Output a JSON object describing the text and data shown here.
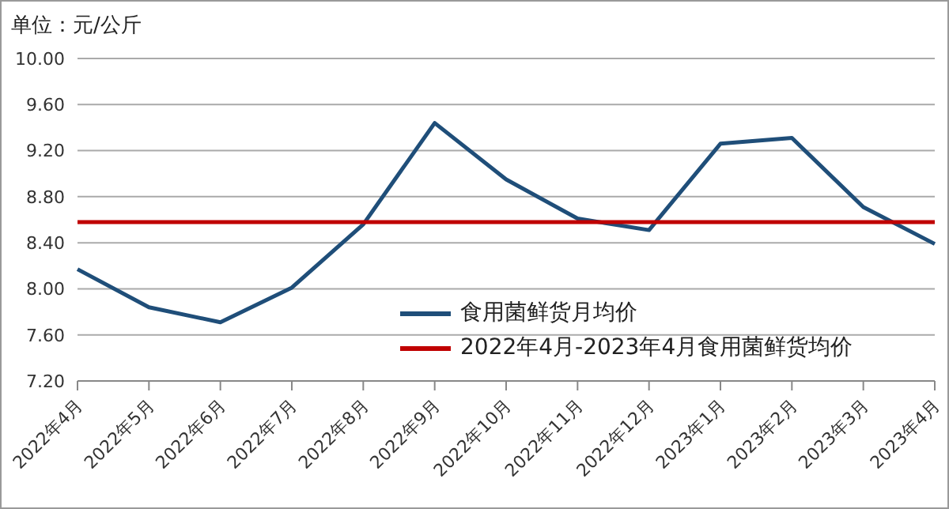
{
  "chart_data": {
    "type": "line",
    "annotations": [
      "单位：元/公斤"
    ],
    "categories": [
      "2022年4月",
      "2022年5月",
      "2022年6月",
      "2022年7月",
      "2022年8月",
      "2022年9月",
      "2022年10月",
      "2022年11月",
      "2022年12月",
      "2023年1月",
      "2023年2月",
      "2023年3月",
      "2023年4月"
    ],
    "series": [
      {
        "name": "食用菌鲜货月均价",
        "color": "#1f4e79",
        "values": [
          8.17,
          7.84,
          7.71,
          8.01,
          8.56,
          9.44,
          8.95,
          8.61,
          8.51,
          9.26,
          9.31,
          8.71,
          8.39
        ]
      },
      {
        "name": "2022年4月-2023年4月食用菌鲜货均价",
        "color": "#c00000",
        "values": [
          8.58,
          8.58,
          8.58,
          8.58,
          8.58,
          8.58,
          8.58,
          8.58,
          8.58,
          8.58,
          8.58,
          8.58,
          8.58
        ]
      }
    ],
    "ylim": [
      7.2,
      10
    ],
    "yticks": [
      {
        "value": 7.2,
        "label": "7.20"
      },
      {
        "value": 7.6,
        "label": "7.60"
      },
      {
        "value": 8,
        "label": "8.00"
      },
      {
        "value": 8.4,
        "label": "8.40"
      },
      {
        "value": 8.8,
        "label": "8.80"
      },
      {
        "value": 9.2,
        "label": "9.20"
      },
      {
        "value": 9.6,
        "label": "9.60"
      },
      {
        "value": 10,
        "label": "10.00"
      }
    ],
    "grid": "y",
    "legend": "bottom right",
    "marker": "none",
    "line_style": "solid"
  }
}
